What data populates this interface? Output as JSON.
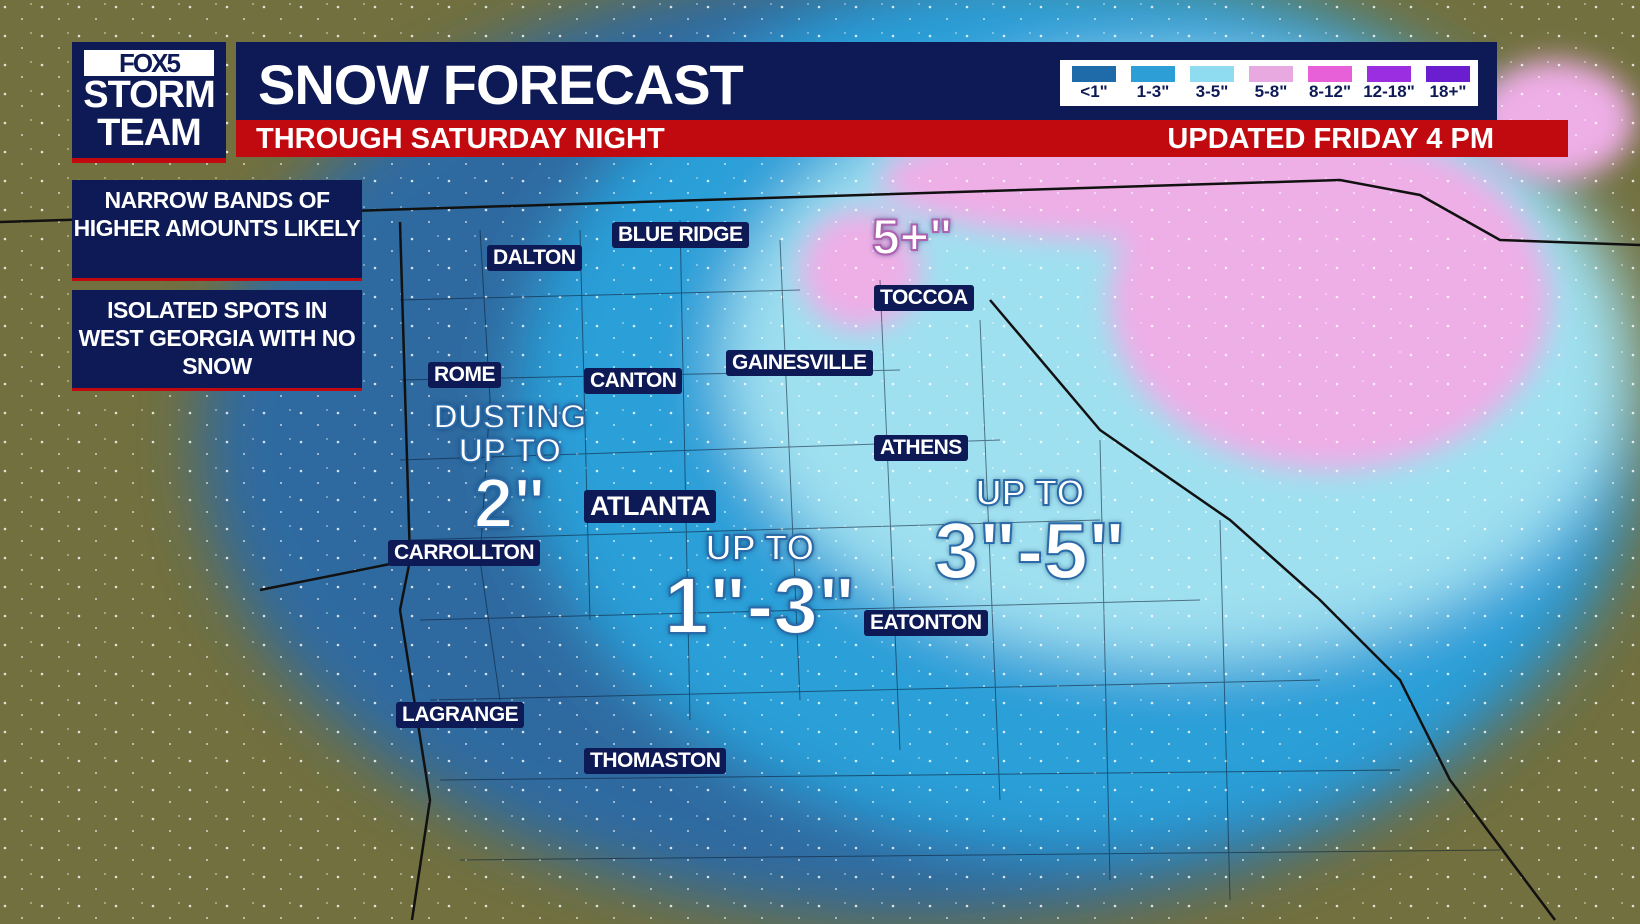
{
  "logo": {
    "line1": "FOX5",
    "line2": "STORM",
    "line3": "TEAM"
  },
  "header": {
    "title": "SNOW FORECAST",
    "subtitle": "THROUGH SATURDAY NIGHT",
    "updated": "UPDATED FRIDAY 4 PM"
  },
  "legend": [
    {
      "label": "<1\"",
      "color": "#1f6aa8"
    },
    {
      "label": "1-3\"",
      "color": "#2e9fd6"
    },
    {
      "label": "3-5\"",
      "color": "#8fdcf0"
    },
    {
      "label": "5-8\"",
      "color": "#e8a8e0"
    },
    {
      "label": "8-12\"",
      "color": "#e860d8"
    },
    {
      "label": "12-18\"",
      "color": "#9a2ee0"
    },
    {
      "label": "18+\"",
      "color": "#6a1ed0"
    }
  ],
  "notes": [
    "NARROW BANDS OF HIGHER AMOUNTS LIKELY",
    "ISOLATED SPOTS IN WEST GEORGIA WITH NO SNOW"
  ],
  "cities": [
    "DALTON",
    "BLUE RIDGE",
    "TOCCOA",
    "ROME",
    "CANTON",
    "GAINESVILLE",
    "ATHENS",
    "ATLANTA",
    "CARROLLTON",
    "EATONTON",
    "LAGRANGE",
    "THOMASTON"
  ],
  "amounts": {
    "west": {
      "line1": "DUSTING",
      "line2": "UP TO",
      "line3": "2\""
    },
    "central": {
      "line1": "UP TO",
      "line2": "1\"-3\""
    },
    "east": {
      "line1": "UP TO",
      "line2": "3\"-5\""
    },
    "north": "5+\""
  }
}
